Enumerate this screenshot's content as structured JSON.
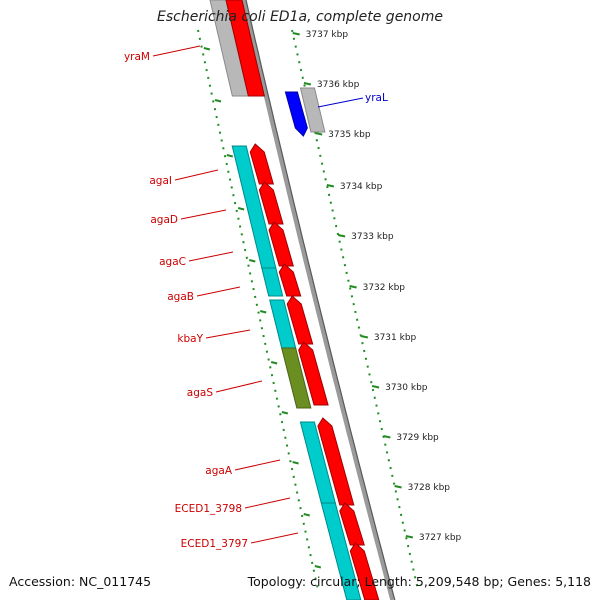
{
  "title": "Escherichia coli ED1a, complete genome",
  "footer": {
    "accession": "Accession: NC_011745",
    "topology": "Topology: circular; Length: 5,209,548 bp; Genes: 5,118"
  },
  "colors": {
    "gene_label": "#cc0000",
    "trna_label": "#0000cc",
    "forward_cds": "#ff0000",
    "reverse_cds": "#00cccc",
    "olive_feature": "#6b8e23",
    "pseudo": "#bbbbbb",
    "trna": "#0000ff",
    "backbone": "#999999",
    "scale": "#228b22"
  },
  "scale_ticks": [
    "3737 kbp",
    "3736 kbp",
    "3735 kbp",
    "3734 kbp",
    "3733 kbp",
    "3732 kbp",
    "3731 kbp",
    "3730 kbp",
    "3729 kbp",
    "3728 kbp",
    "3727 kbp"
  ],
  "gene_labels": [
    "yraM",
    "agaI",
    "agaD",
    "agaC",
    "agaB",
    "kbaY",
    "agaS",
    "agaA",
    "ECED1_3798",
    "ECED1_3797"
  ],
  "trna_label": "yraL"
}
